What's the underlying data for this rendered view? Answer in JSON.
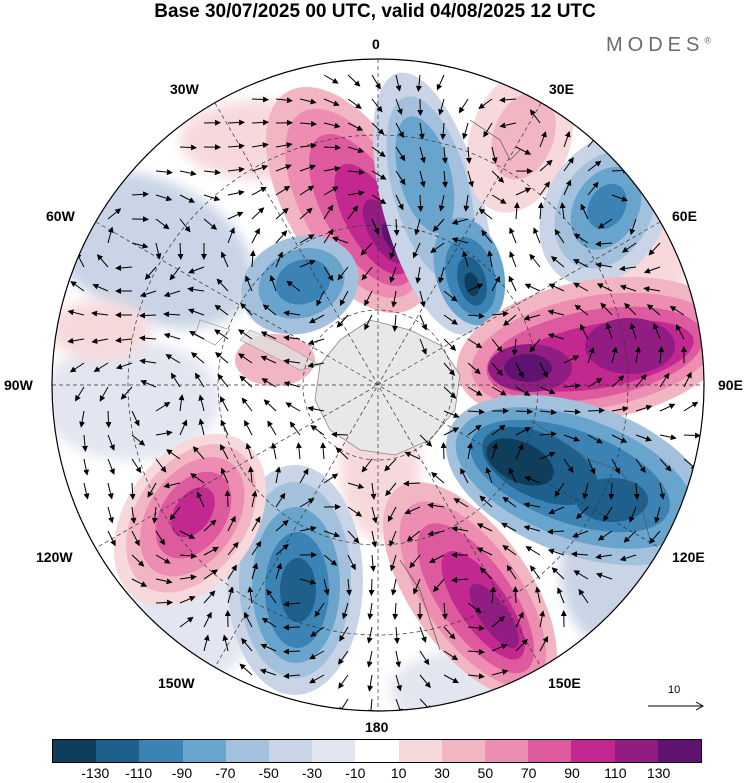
{
  "title": "Base 30/07/2025 00 UTC, valid 04/08/2025 12 UTC",
  "brand": "MODES",
  "brand_mark": "®",
  "longitude_labels": {
    "top": "0",
    "top_left": "30W",
    "top_right": "30E",
    "upper_left": "60W",
    "upper_right": "60E",
    "left": "90W",
    "right": "90E",
    "lower_left": "120W",
    "lower_right": "120E",
    "bottom_left": "150W",
    "bottom_right": "150E",
    "bottom": "180"
  },
  "vector_scale": {
    "label": "10"
  },
  "colorbar": {
    "colors": [
      "#0f3d5c",
      "#1f5f8b",
      "#3b83b5",
      "#69a4cc",
      "#a3c1dd",
      "#c9d4e6",
      "#e3e5f0",
      "#ffffff",
      "#f7d9dc",
      "#f2b6c3",
      "#ec8db1",
      "#dd5a9e",
      "#c2288f",
      "#921d82",
      "#5e1370"
    ],
    "ticks": [
      "-130",
      "-110",
      "-90",
      "-70",
      "-50",
      "-30",
      "-10",
      "10",
      "30",
      "50",
      "70",
      "90",
      "110",
      "130"
    ]
  },
  "anomaly_cells": [
    {
      "sign": "positive",
      "intensity": 130,
      "region": "0 to 30W",
      "peak": "near 10W"
    },
    {
      "sign": "negative",
      "intensity": 130,
      "region": "10E to 30E"
    },
    {
      "sign": "negative",
      "intensity": 70,
      "region": "0 to 20E, upper"
    },
    {
      "sign": "positive",
      "intensity": 50,
      "region": "30E"
    },
    {
      "sign": "negative",
      "intensity": 90,
      "region": "50E to 60E"
    },
    {
      "sign": "positive",
      "intensity": 130,
      "region": "80E to 100E"
    },
    {
      "sign": "negative",
      "intensity": 130,
      "region": "100E to 130E"
    },
    {
      "sign": "positive",
      "intensity": 110,
      "region": "150E to 170E"
    },
    {
      "sign": "negative",
      "intensity": 110,
      "region": "160W to 180"
    },
    {
      "sign": "positive",
      "intensity": 110,
      "region": "120W to 140W"
    },
    {
      "sign": "negative",
      "intensity": 90,
      "region": "40W to 60W"
    },
    {
      "sign": "positive",
      "intensity": 50,
      "region": "70W to 80W"
    }
  ]
}
